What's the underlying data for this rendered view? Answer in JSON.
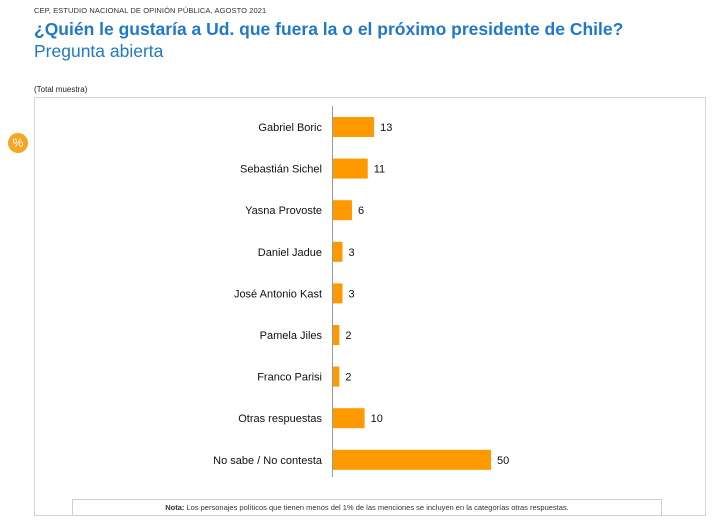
{
  "header": {
    "source": "CEP, ESTUDIO NACIONAL DE OPINIÓN PÚBLICA, AGOSTO 2021",
    "title": "¿Quién le gustaría a Ud. que fuera la o el próximo presidente de Chile?",
    "subtitle": "Pregunta abierta",
    "sample_label": "(Total muestra)"
  },
  "badge": {
    "symbol": "%"
  },
  "note": {
    "label": "Nota:",
    "text": " Los personajes políticos que tienen menos del 1% de las menciones se incluyen en la categorías otras respuestas."
  },
  "colors": {
    "bar": "#ff9900",
    "title": "#1f78c8",
    "badge": "#f5a623"
  },
  "chart_data": {
    "type": "bar",
    "orientation": "horizontal",
    "title": "¿Quién le gustaría a Ud. que fuera la o el próximo presidente de Chile?",
    "categories": [
      "Gabriel Boric",
      "Sebastián Sichel",
      "Yasna Provoste",
      "Daniel Jadue",
      "José Antonio Kast",
      "Pamela Jiles",
      "Franco Parisi",
      "Otras respuestas",
      "No sabe / No contesta"
    ],
    "values": [
      13,
      11,
      6,
      3,
      3,
      2,
      2,
      10,
      50
    ],
    "xlim": [
      0,
      100
    ],
    "data_labels": true,
    "grid": false,
    "legend": "none"
  }
}
